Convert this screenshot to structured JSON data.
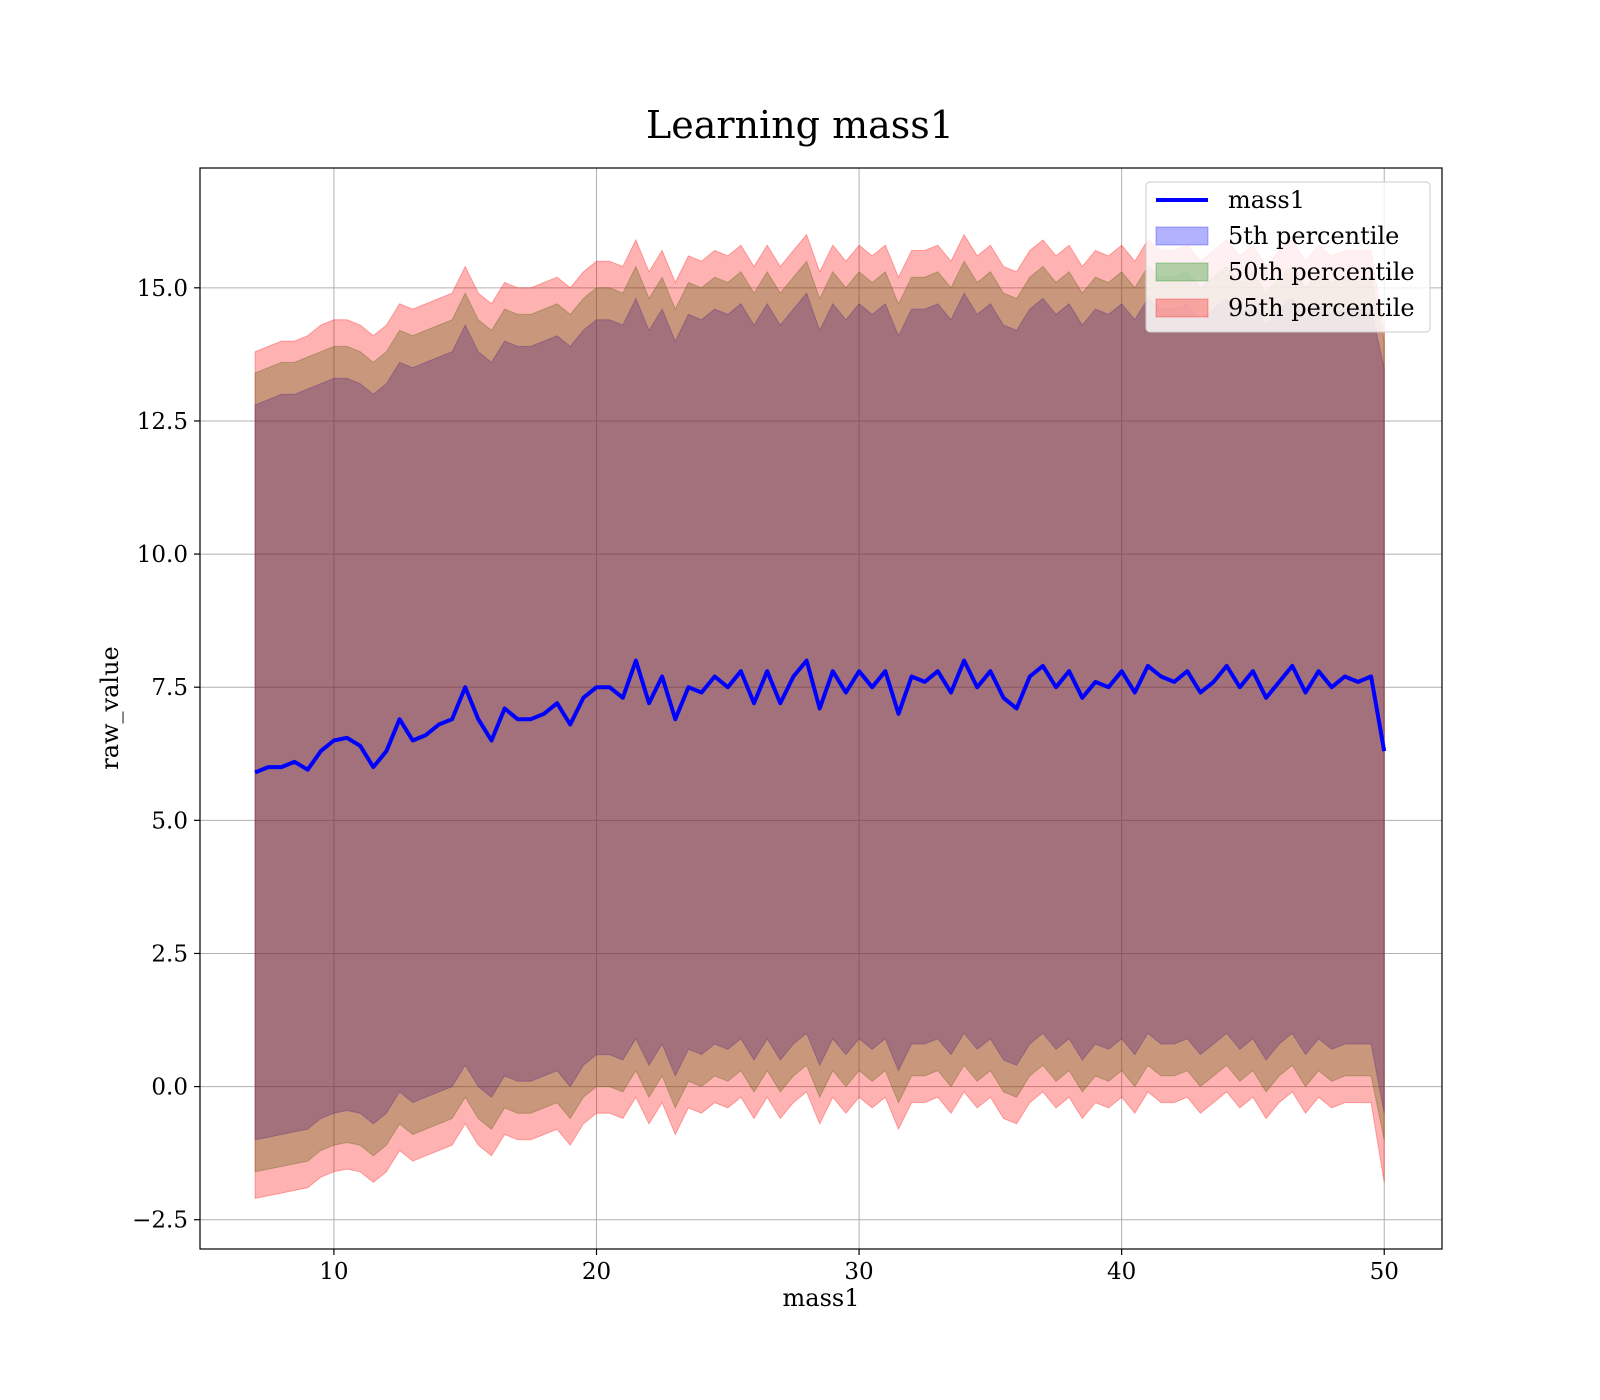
{
  "chart_data": {
    "type": "area",
    "title": "Learning mass1",
    "xlabel": "mass1",
    "ylabel": "raw_value",
    "xlim": [
      4.9,
      52.2
    ],
    "ylim": [
      -3.05,
      17.25
    ],
    "x_ticks": [
      10,
      20,
      30,
      40,
      50
    ],
    "x_tick_labels": [
      "10",
      "20",
      "30",
      "40",
      "50"
    ],
    "y_ticks": [
      -2.5,
      0.0,
      2.5,
      5.0,
      7.5,
      10.0,
      12.5,
      15.0
    ],
    "y_tick_labels": [
      "−2.5",
      "0.0",
      "2.5",
      "5.0",
      "7.5",
      "10.0",
      "12.5",
      "15.0"
    ],
    "grid": true,
    "legend_position": "top-right",
    "line_series": {
      "name": "mass1",
      "color": "#0000ff",
      "x": [
        7.0,
        7.5,
        8.0,
        8.5,
        9.0,
        9.5,
        10.0,
        10.5,
        11.0,
        11.5,
        12.0,
        12.5,
        13.0,
        13.5,
        14.0,
        14.5,
        15.0,
        15.5,
        16.0,
        16.5,
        17.0,
        17.5,
        18.0,
        18.5,
        19.0,
        19.5,
        20.0,
        20.5,
        21.0,
        21.5,
        22.0,
        22.5,
        23.0,
        23.5,
        24.0,
        24.5,
        25.0,
        25.5,
        26.0,
        26.5,
        27.0,
        27.5,
        28.0,
        28.5,
        29.0,
        29.5,
        30.0,
        30.5,
        31.0,
        31.5,
        32.0,
        32.5,
        33.0,
        33.5,
        34.0,
        34.5,
        35.0,
        35.5,
        36.0,
        36.5,
        37.0,
        37.5,
        38.0,
        38.5,
        39.0,
        39.5,
        40.0,
        40.5,
        41.0,
        41.5,
        42.0,
        42.5,
        43.0,
        43.5,
        44.0,
        44.5,
        45.0,
        45.5,
        46.0,
        46.5,
        47.0,
        47.5,
        48.0,
        48.5,
        49.0,
        49.5,
        50.0
      ],
      "values": [
        5.9,
        6.0,
        6.0,
        6.1,
        5.95,
        6.3,
        6.5,
        6.55,
        6.4,
        6.0,
        6.3,
        6.9,
        6.5,
        6.6,
        6.8,
        6.9,
        7.5,
        6.9,
        6.5,
        7.1,
        6.9,
        6.9,
        7.0,
        7.2,
        6.8,
        7.3,
        7.5,
        7.5,
        7.3,
        8.0,
        7.2,
        7.7,
        6.9,
        7.5,
        7.4,
        7.7,
        7.5,
        7.8,
        7.2,
        7.8,
        7.2,
        7.7,
        8.0,
        7.1,
        7.8,
        7.4,
        7.8,
        7.5,
        7.8,
        7.0,
        7.7,
        7.6,
        7.8,
        7.4,
        8.0,
        7.5,
        7.8,
        7.3,
        7.1,
        7.7,
        7.9,
        7.5,
        7.8,
        7.3,
        7.6,
        7.5,
        7.8,
        7.4,
        7.9,
        7.7,
        7.6,
        7.8,
        7.4,
        7.6,
        7.9,
        7.5,
        7.8,
        7.3,
        7.6,
        7.9,
        7.4,
        7.8,
        7.5,
        7.7,
        7.6,
        7.7,
        6.3
      ]
    },
    "band_series": [
      {
        "name": "5th percentile",
        "color": "#0000ff",
        "upper": [
          12.8,
          12.9,
          13.0,
          13.0,
          13.1,
          13.2,
          13.3,
          13.3,
          13.2,
          13.0,
          13.2,
          13.6,
          13.5,
          13.6,
          13.7,
          13.8,
          14.3,
          13.8,
          13.6,
          14.0,
          13.9,
          13.9,
          14.0,
          14.1,
          13.9,
          14.2,
          14.4,
          14.4,
          14.3,
          14.8,
          14.2,
          14.6,
          14.0,
          14.5,
          14.4,
          14.6,
          14.5,
          14.7,
          14.3,
          14.7,
          14.3,
          14.6,
          14.9,
          14.2,
          14.7,
          14.4,
          14.7,
          14.5,
          14.7,
          14.1,
          14.6,
          14.6,
          14.7,
          14.4,
          14.9,
          14.5,
          14.7,
          14.3,
          14.2,
          14.6,
          14.8,
          14.5,
          14.7,
          14.3,
          14.6,
          14.5,
          14.7,
          14.4,
          14.8,
          14.6,
          14.6,
          14.7,
          14.4,
          14.6,
          14.8,
          14.5,
          14.7,
          14.3,
          14.6,
          14.8,
          14.4,
          14.7,
          14.5,
          14.6,
          14.6,
          14.6,
          13.5
        ],
        "lower": [
          -1.0,
          -0.95,
          -0.9,
          -0.85,
          -0.8,
          -0.6,
          -0.5,
          -0.45,
          -0.5,
          -0.7,
          -0.5,
          -0.1,
          -0.3,
          -0.2,
          -0.1,
          0.0,
          0.4,
          0.0,
          -0.2,
          0.2,
          0.1,
          0.1,
          0.2,
          0.3,
          0.0,
          0.4,
          0.6,
          0.6,
          0.5,
          0.9,
          0.4,
          0.8,
          0.2,
          0.7,
          0.6,
          0.8,
          0.7,
          0.9,
          0.5,
          0.9,
          0.5,
          0.8,
          1.0,
          0.4,
          0.9,
          0.6,
          0.9,
          0.7,
          0.9,
          0.3,
          0.8,
          0.8,
          0.9,
          0.6,
          1.0,
          0.7,
          0.9,
          0.5,
          0.4,
          0.8,
          1.0,
          0.7,
          0.9,
          0.5,
          0.8,
          0.7,
          0.9,
          0.6,
          1.0,
          0.8,
          0.8,
          0.9,
          0.6,
          0.8,
          1.0,
          0.7,
          0.9,
          0.5,
          0.8,
          1.0,
          0.6,
          0.9,
          0.7,
          0.8,
          0.8,
          0.8,
          -0.5
        ]
      },
      {
        "name": "50th percentile",
        "color": "#008000",
        "upper": [
          13.4,
          13.5,
          13.6,
          13.6,
          13.7,
          13.8,
          13.9,
          13.9,
          13.8,
          13.6,
          13.8,
          14.2,
          14.1,
          14.2,
          14.3,
          14.4,
          14.9,
          14.4,
          14.2,
          14.6,
          14.5,
          14.5,
          14.6,
          14.7,
          14.5,
          14.8,
          15.0,
          15.0,
          14.9,
          15.4,
          14.8,
          15.2,
          14.6,
          15.1,
          15.0,
          15.2,
          15.1,
          15.3,
          14.9,
          15.3,
          14.9,
          15.2,
          15.5,
          14.8,
          15.3,
          15.0,
          15.3,
          15.1,
          15.3,
          14.7,
          15.2,
          15.2,
          15.3,
          15.0,
          15.5,
          15.1,
          15.3,
          14.9,
          14.8,
          15.2,
          15.4,
          15.1,
          15.3,
          14.9,
          15.2,
          15.1,
          15.3,
          15.0,
          15.4,
          15.2,
          15.2,
          15.3,
          15.0,
          15.2,
          15.4,
          15.1,
          15.3,
          14.9,
          15.2,
          15.4,
          15.0,
          15.3,
          15.1,
          15.2,
          15.2,
          15.2,
          14.0
        ],
        "lower": [
          -1.6,
          -1.55,
          -1.5,
          -1.45,
          -1.4,
          -1.2,
          -1.1,
          -1.05,
          -1.1,
          -1.3,
          -1.1,
          -0.7,
          -0.9,
          -0.8,
          -0.7,
          -0.6,
          -0.2,
          -0.6,
          -0.8,
          -0.4,
          -0.5,
          -0.5,
          -0.4,
          -0.3,
          -0.6,
          -0.2,
          0.0,
          0.0,
          -0.1,
          0.3,
          -0.2,
          0.2,
          -0.4,
          0.1,
          0.0,
          0.2,
          0.1,
          0.3,
          -0.1,
          0.3,
          -0.1,
          0.2,
          0.4,
          -0.2,
          0.3,
          0.0,
          0.3,
          0.1,
          0.3,
          -0.3,
          0.2,
          0.2,
          0.3,
          0.0,
          0.4,
          0.1,
          0.3,
          -0.1,
          -0.2,
          0.2,
          0.4,
          0.1,
          0.3,
          -0.1,
          0.2,
          0.1,
          0.3,
          0.0,
          0.4,
          0.2,
          0.2,
          0.3,
          0.0,
          0.2,
          0.4,
          0.1,
          0.3,
          -0.1,
          0.2,
          0.4,
          0.0,
          0.3,
          0.1,
          0.2,
          0.2,
          0.2,
          -1.0
        ]
      },
      {
        "name": "95th percentile",
        "color": "#ff0000",
        "upper": [
          13.8,
          13.9,
          14.0,
          14.0,
          14.1,
          14.3,
          14.4,
          14.4,
          14.3,
          14.1,
          14.3,
          14.7,
          14.6,
          14.7,
          14.8,
          14.9,
          15.4,
          14.9,
          14.7,
          15.1,
          15.0,
          15.0,
          15.1,
          15.2,
          15.0,
          15.3,
          15.5,
          15.5,
          15.4,
          15.9,
          15.3,
          15.7,
          15.1,
          15.6,
          15.5,
          15.7,
          15.6,
          15.8,
          15.4,
          15.8,
          15.4,
          15.7,
          16.0,
          15.3,
          15.8,
          15.5,
          15.8,
          15.6,
          15.8,
          15.2,
          15.7,
          15.7,
          15.8,
          15.5,
          16.0,
          15.6,
          15.8,
          15.4,
          15.3,
          15.7,
          15.9,
          15.6,
          15.8,
          15.4,
          15.7,
          15.6,
          15.8,
          15.5,
          15.9,
          15.7,
          15.7,
          15.8,
          15.5,
          15.7,
          15.9,
          15.6,
          15.8,
          15.4,
          15.7,
          15.9,
          15.5,
          15.8,
          15.6,
          15.7,
          15.7,
          15.7,
          14.2
        ],
        "lower": [
          -2.1,
          -2.05,
          -2.0,
          -1.95,
          -1.9,
          -1.7,
          -1.6,
          -1.55,
          -1.6,
          -1.8,
          -1.6,
          -1.2,
          -1.4,
          -1.3,
          -1.2,
          -1.1,
          -0.7,
          -1.1,
          -1.3,
          -0.9,
          -1.0,
          -1.0,
          -0.9,
          -0.8,
          -1.1,
          -0.7,
          -0.5,
          -0.5,
          -0.6,
          -0.2,
          -0.7,
          -0.3,
          -0.9,
          -0.4,
          -0.5,
          -0.3,
          -0.4,
          -0.2,
          -0.6,
          -0.2,
          -0.6,
          -0.3,
          -0.1,
          -0.7,
          -0.2,
          -0.5,
          -0.2,
          -0.4,
          -0.2,
          -0.8,
          -0.3,
          -0.3,
          -0.2,
          -0.5,
          -0.1,
          -0.4,
          -0.2,
          -0.6,
          -0.7,
          -0.3,
          -0.1,
          -0.4,
          -0.2,
          -0.6,
          -0.3,
          -0.4,
          -0.2,
          -0.5,
          -0.1,
          -0.3,
          -0.3,
          -0.2,
          -0.5,
          -0.3,
          -0.1,
          -0.4,
          -0.2,
          -0.6,
          -0.3,
          -0.1,
          -0.5,
          -0.2,
          -0.4,
          -0.3,
          -0.3,
          -0.3,
          -1.8
        ]
      }
    ]
  }
}
